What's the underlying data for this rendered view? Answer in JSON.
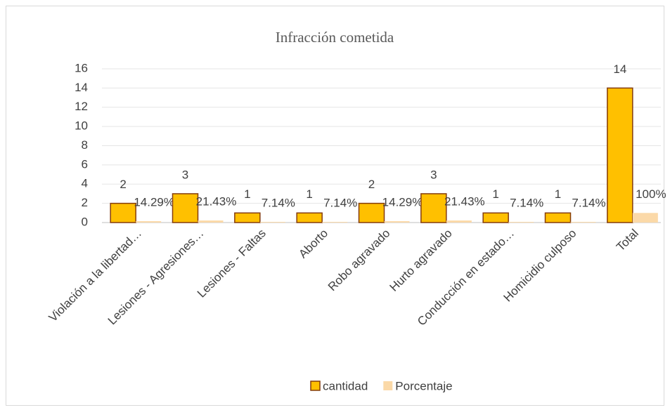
{
  "chart_data": {
    "type": "bar",
    "title": "Infracción cometida",
    "categories": [
      "Violación a la libertad…",
      "Lesiones - Agresiones…",
      "Lesiones - Faltas",
      "Aborto",
      "Robo agravado",
      "Hurto agravado",
      "Conducción en estado…",
      "Homicidio culposo",
      "Total"
    ],
    "series": [
      {
        "name": "cantidad",
        "color": "#ffc000",
        "values": [
          2,
          3,
          1,
          1,
          2,
          3,
          1,
          1,
          14
        ]
      },
      {
        "name": "Porcentaje",
        "color": "#fbd9a8",
        "values": [
          0.1429,
          0.2143,
          0.0714,
          0.0714,
          0.1429,
          0.2143,
          0.0714,
          0.0714,
          1
        ],
        "value_labels": [
          "14.29%",
          "21.43%",
          "7.14%",
          "7.14%",
          "14.29%",
          "21.43%",
          "7.14%",
          "7.14%",
          "100%"
        ]
      }
    ],
    "ylim": [
      0,
      16
    ],
    "yticks": [
      0,
      2,
      4,
      6,
      8,
      10,
      12,
      14,
      16
    ],
    "grid": true,
    "legend": "bottom"
  }
}
